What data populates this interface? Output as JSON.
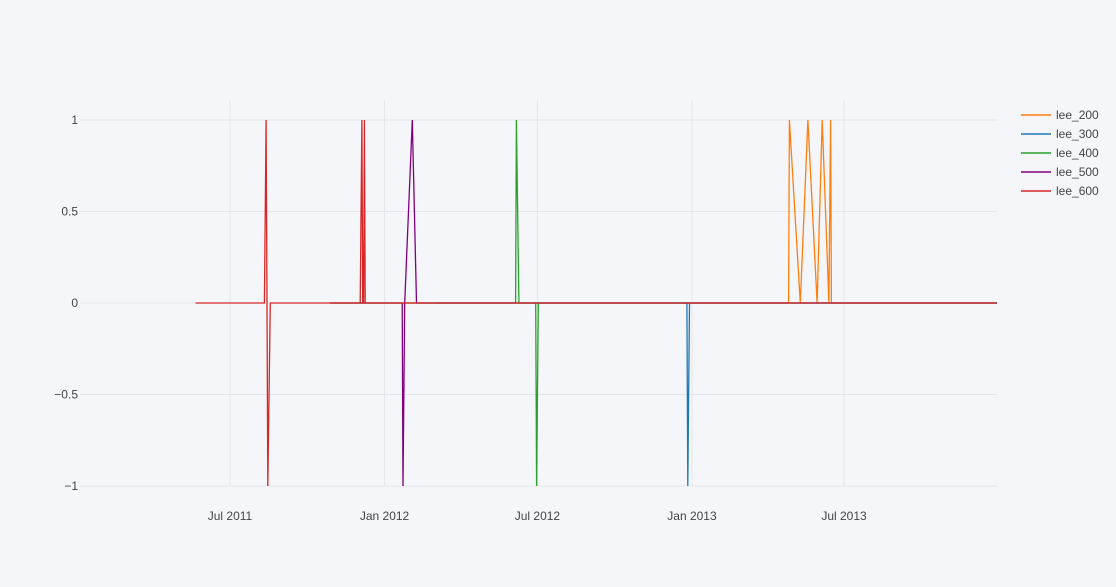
{
  "chart_data": {
    "type": "line",
    "title": "",
    "xlabel": "",
    "ylabel": "",
    "x_axis_type": "date",
    "xlim": [
      "2011-01-01",
      "2013-12-31"
    ],
    "ylim": [
      -1,
      1
    ],
    "x_ticks": [
      {
        "date": "2011-07-01",
        "label": "Jul 2011"
      },
      {
        "date": "2012-01-01",
        "label": "Jan 2012"
      },
      {
        "date": "2012-07-01",
        "label": "Jul 2012"
      },
      {
        "date": "2013-01-01",
        "label": "Jan 2013"
      },
      {
        "date": "2013-07-01",
        "label": "Jul 2013"
      }
    ],
    "y_ticks": [
      {
        "value": 1,
        "label": "1"
      },
      {
        "value": 0.5,
        "label": "0.5"
      },
      {
        "value": 0,
        "label": "0"
      },
      {
        "value": -0.5,
        "label": "−0.5"
      },
      {
        "value": -1,
        "label": "−1"
      }
    ],
    "grid": true,
    "legend_position": "top-right",
    "series": [
      {
        "name": "lee_200",
        "color": "#ff7f0e",
        "points": [
          [
            "2011-10-28",
            0
          ],
          [
            "2013-04-26",
            0
          ],
          [
            "2013-04-27",
            1
          ],
          [
            "2013-05-10",
            0
          ],
          [
            "2013-05-19",
            1
          ],
          [
            "2013-05-30",
            0
          ],
          [
            "2013-06-05",
            1
          ],
          [
            "2013-06-13",
            0
          ],
          [
            "2013-06-15",
            1
          ],
          [
            "2013-06-16",
            0
          ],
          [
            "2013-12-31",
            0
          ]
        ]
      },
      {
        "name": "lee_300",
        "color": "#1f77b4",
        "points": [
          [
            "2012-03-01",
            0
          ],
          [
            "2012-12-26",
            0
          ],
          [
            "2012-12-27",
            -1
          ],
          [
            "2012-12-29",
            0
          ],
          [
            "2013-12-31",
            0
          ]
        ]
      },
      {
        "name": "lee_400",
        "color": "#2ca02c",
        "points": [
          [
            "2011-10-28",
            0
          ],
          [
            "2012-06-05",
            0
          ],
          [
            "2012-06-06",
            1
          ],
          [
            "2012-06-09",
            0
          ],
          [
            "2012-06-29",
            0
          ],
          [
            "2012-06-30",
            -1
          ],
          [
            "2012-07-02",
            0
          ],
          [
            "2013-12-31",
            0
          ]
        ]
      },
      {
        "name": "lee_500",
        "color": "#800080",
        "points": [
          [
            "2011-10-28",
            0
          ],
          [
            "2012-01-22",
            0
          ],
          [
            "2012-01-23",
            -1
          ],
          [
            "2012-01-25",
            0
          ],
          [
            "2012-02-03",
            1
          ],
          [
            "2012-02-08",
            0
          ],
          [
            "2013-12-31",
            0
          ]
        ]
      },
      {
        "name": "lee_600",
        "color": "#d62728",
        "points": [
          [
            "2011-05-21",
            0
          ],
          [
            "2011-08-11",
            0
          ],
          [
            "2011-08-13",
            1
          ],
          [
            "2011-08-14",
            0
          ],
          [
            "2011-08-15",
            -1
          ],
          [
            "2011-08-18",
            0
          ],
          [
            "2011-12-03",
            0
          ],
          [
            "2011-12-05",
            1
          ],
          [
            "2011-12-06",
            0
          ],
          [
            "2011-12-07",
            0
          ],
          [
            "2011-12-08",
            1
          ],
          [
            "2011-12-09",
            0
          ],
          [
            "2013-12-31",
            0
          ]
        ]
      }
    ]
  }
}
